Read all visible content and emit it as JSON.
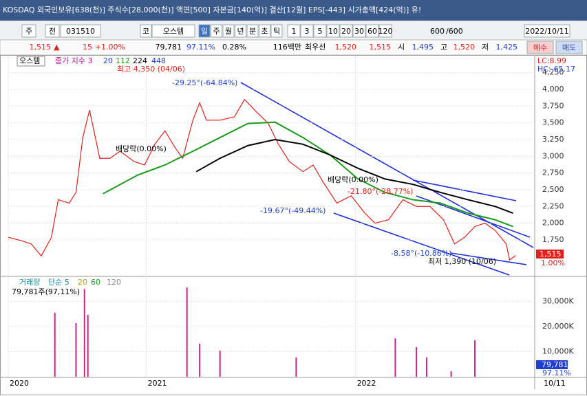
{
  "title_bar": "KOSDAQ 외국인보유[638(천)] 주식수[28,000(천)] 액면[500] 자본금[140(억)] 결산[12월] EPS[-443] 시가총액[424(억)] 유!",
  "toolbar": {
    "period": "주",
    "prev": "전",
    "code": "031510",
    "market": "코",
    "name": "오스템",
    "intervals": [
      "일",
      "주",
      "월",
      "년",
      "분",
      "초",
      "틱"
    ],
    "counts": [
      "1",
      "3",
      "5",
      "10",
      "20",
      "30",
      "60",
      "120"
    ],
    "bars": "600",
    "bars_total": "/600",
    "date": "2022/10/11"
  },
  "quote": {
    "price": "1,515",
    "arrow": "▲",
    "change": "15",
    "change_pct": "+1.00%",
    "volume": "79,781",
    "volume_ratio": "97.11%",
    "turnover": "0.28%",
    "amount": "116백만",
    "best": "최우선",
    "ask": "1,520",
    "bid": "1,515",
    "open_label": "시",
    "open": "1,495",
    "high_label": "고",
    "high": "1,520",
    "low_label": "저",
    "low": "1,425",
    "buy": "매수",
    "sell": "매도"
  },
  "x_end_label": "10/11",
  "chart_data": [
    {
      "type": "line",
      "legend_extra": [
        "종가 지수 3",
        "20",
        "448"
      ],
      "right_labels": [
        "LC:8.99",
        "HC:-65.17"
      ],
      "change_label": "1.00%",
      "annotations": [
        "최고 4,350 (04/06)",
        "-29.25°(-64.84%)",
        "배당락(0.00%)",
        "배당락(0.00%)",
        "-21.80°(-28.77%)",
        "-19.67°(-49.44%)",
        "-8.58°(-10.86%)",
        "최저 1,390 (10/06)"
      ],
      "xlim": [
        0,
        620
      ],
      "ylim": [
        1225,
        4360
      ],
      "xticks": [
        {
          "value": 0,
          "label": "2020"
        },
        {
          "value": 163,
          "label": "2021"
        },
        {
          "value": 410,
          "label": "2022"
        }
      ],
      "yticks": [
        {
          "value": 1750,
          "label": "1,750"
        },
        {
          "value": 2000,
          "label": "2,000"
        },
        {
          "value": 2250,
          "label": "2,250"
        },
        {
          "value": 2500,
          "label": "2,500"
        },
        {
          "value": 2750,
          "label": "2,750"
        },
        {
          "value": 3000,
          "label": "3,000"
        },
        {
          "value": 3250,
          "label": "3,250"
        },
        {
          "value": 3500,
          "label": "3,500"
        },
        {
          "value": 3750,
          "label": "3,750"
        },
        {
          "value": 4000,
          "label": "4,000"
        },
        {
          "value": 4250,
          "label": "4,250"
        }
      ],
      "series": [
        {
          "name": "오스템",
          "color": "#e0201b",
          "x": [
            0,
            15,
            27,
            39,
            51,
            59,
            72,
            80,
            88,
            96,
            108,
            120,
            132,
            149,
            161,
            173,
            185,
            197,
            206,
            218,
            226,
            234,
            250,
            267,
            279,
            291,
            307,
            319,
            332,
            348,
            360,
            372,
            388,
            405,
            421,
            433,
            449,
            466,
            482,
            498,
            514,
            527,
            539,
            551,
            563,
            575,
            588,
            592,
            599
          ],
          "values": [
            1790,
            1740,
            1690,
            1510,
            1790,
            2350,
            2300,
            2460,
            3280,
            3690,
            2970,
            2970,
            3075,
            2920,
            2870,
            3180,
            3380,
            3130,
            2970,
            3540,
            3800,
            3540,
            3540,
            3590,
            3850,
            3690,
            3490,
            3180,
            2920,
            2770,
            2870,
            2610,
            2300,
            2410,
            2150,
            2000,
            2050,
            2350,
            2250,
            2250,
            2050,
            1690,
            1790,
            1950,
            2000,
            1890,
            1690,
            1450,
            1515
          ]
        },
        {
          "name": "112",
          "color": "#1a9a1a",
          "x": [
            112,
            153,
            185,
            218,
            250,
            283,
            315,
            348,
            380,
            413,
            445,
            478,
            510,
            543,
            575,
            596
          ],
          "values": [
            2440,
            2720,
            2870,
            3075,
            3280,
            3490,
            3510,
            3280,
            3020,
            2660,
            2460,
            2350,
            2300,
            2150,
            2050,
            1950
          ]
        },
        {
          "name": "224",
          "color": "#000000",
          "x": [
            222,
            250,
            283,
            315,
            348,
            380,
            413,
            445,
            478,
            510,
            543,
            575,
            596
          ],
          "values": [
            2770,
            2970,
            3160,
            3250,
            3180,
            3020,
            2820,
            2660,
            2580,
            2460,
            2350,
            2250,
            2150
          ]
        }
      ]
    },
    {
      "type": "bar",
      "title": "거래량",
      "legend": [
        "단순 5",
        "20",
        "60",
        "120"
      ],
      "volume_label": "79,781주(97,11%)",
      "ratio_label": "97.11%",
      "color": "#d0208a",
      "xlim": [
        0,
        620
      ],
      "ylim": [
        0,
        39200
      ],
      "yticks": [
        {
          "value": 10000,
          "label": "10,000K"
        },
        {
          "value": 20000,
          "label": "20,000K"
        },
        {
          "value": 30000,
          "label": "30,000K"
        }
      ],
      "x": [
        55,
        80,
        90,
        94,
        211,
        226,
        250,
        340,
        457,
        482,
        494,
        523,
        551
      ],
      "values": [
        25500,
        21400,
        35000,
        24700,
        35600,
        13200,
        10400,
        7700,
        15300,
        11800,
        7700,
        2200,
        14500
      ]
    }
  ]
}
